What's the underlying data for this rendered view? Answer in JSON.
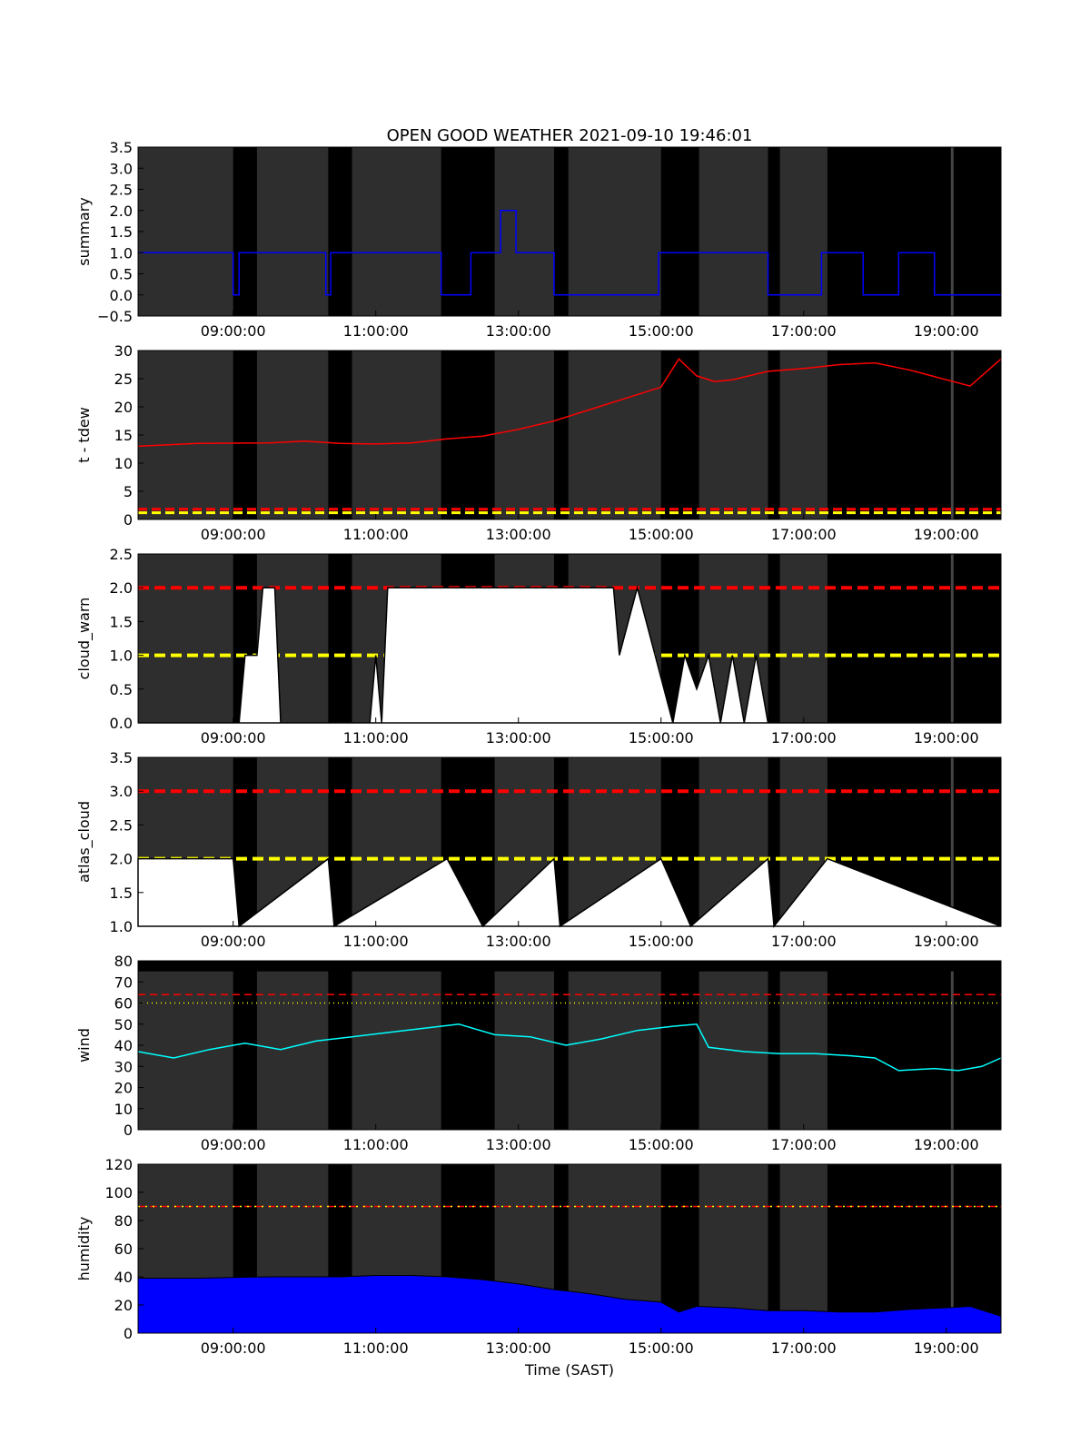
{
  "figure": {
    "title": "OPEN GOOD WEATHER 2021-09-10 19:46:01",
    "xlabel": "Time (SAST)",
    "x_range": [
      "07:40:00",
      "19:46:01"
    ],
    "x_ticks": [
      "09:00:00",
      "11:00:00",
      "13:00:00",
      "15:00:00",
      "17:00:00",
      "19:00:00"
    ],
    "colors": {
      "background": "#000000",
      "shade": "#2e2e2e",
      "red": "#ff0000",
      "yellow": "#ffff00",
      "white": "#ffffff",
      "blue": "#0000ff",
      "cyan": "#00ffff"
    }
  },
  "chart_data": [
    {
      "type": "line",
      "ylabel": "summary",
      "ylim": [
        -0.5,
        3.5
      ],
      "yticks": [
        "−0.5",
        "0.0",
        "0.5",
        "1.0",
        "1.5",
        "2.0",
        "2.5",
        "3.0",
        "3.5"
      ],
      "series": [
        {
          "color": "#0000ff",
          "x": [
            "07:40",
            "09:00",
            "09:00",
            "09:05",
            "09:05",
            "10:18",
            "10:18",
            "10:22",
            "10:22",
            "11:55",
            "11:55",
            "12:20",
            "12:20",
            "12:45",
            "12:45",
            "12:58",
            "12:58",
            "13:30",
            "13:30",
            "14:58",
            "14:58",
            "15:20",
            "15:20",
            "16:30",
            "16:30",
            "17:15",
            "17:15",
            "17:50",
            "17:50",
            "18:20",
            "18:20",
            "18:50",
            "18:50",
            "19:25",
            "19:25",
            "19:46"
          ],
          "y": [
            1,
            1,
            0,
            0,
            1,
            1,
            0,
            0,
            1,
            1,
            0,
            0,
            1,
            1,
            2,
            2,
            1,
            1,
            0,
            0,
            1,
            1,
            1,
            1,
            0,
            0,
            1,
            1,
            0,
            0,
            1,
            1,
            0,
            0,
            0,
            0
          ]
        }
      ]
    },
    {
      "type": "line",
      "ylabel": "t - tdew",
      "ylim": [
        0,
        30
      ],
      "yticks": [
        "0",
        "5",
        "10",
        "15",
        "20",
        "25",
        "30"
      ],
      "series": [
        {
          "color": "#ff0000",
          "x": [
            "07:40",
            "08:30",
            "09:30",
            "10:00",
            "10:30",
            "11:00",
            "11:30",
            "12:00",
            "12:30",
            "13:00",
            "13:30",
            "14:00",
            "14:30",
            "15:00",
            "15:15",
            "15:30",
            "15:45",
            "16:00",
            "16:30",
            "17:00",
            "17:30",
            "18:00",
            "18:30",
            "19:00",
            "19:20",
            "19:46"
          ],
          "y": [
            13,
            13.5,
            13.6,
            13.9,
            13.5,
            13.4,
            13.6,
            14.3,
            14.8,
            16,
            17.5,
            19.5,
            21.5,
            23.5,
            28.5,
            25.5,
            24.5,
            24.8,
            26.3,
            26.8,
            27.5,
            27.8,
            26.5,
            24.8,
            23.7,
            28.5
          ]
        },
        {
          "color": "#ff0000",
          "x": [
            "07:40",
            "19:46"
          ],
          "y": [
            1.8,
            1.8
          ]
        },
        {
          "color": "#ffff00",
          "x": [
            "07:40",
            "19:46"
          ],
          "y": [
            1.2,
            1.2
          ]
        }
      ]
    },
    {
      "type": "line",
      "ylabel": "cloud_warn",
      "ylim": [
        0,
        2.5
      ],
      "yticks": [
        "0.0",
        "0.5",
        "1.0",
        "1.5",
        "2.0",
        "2.5"
      ],
      "thresholds": [
        2.0,
        1.0
      ],
      "series": [
        {
          "color": "#ffffff",
          "x": [
            "07:40",
            "09:05",
            "09:10",
            "09:20",
            "09:25",
            "09:35",
            "09:40",
            "10:55",
            "11:00",
            "11:05",
            "11:10",
            "11:15",
            "12:00",
            "12:30",
            "13:00",
            "13:30",
            "14:00",
            "14:20",
            "14:25",
            "14:40",
            "14:55",
            "15:10",
            "15:20",
            "15:30",
            "15:40",
            "15:50",
            "16:00",
            "16:10",
            "16:20",
            "16:30",
            "16:40",
            "19:46"
          ],
          "y": [
            0,
            0,
            1,
            1,
            2,
            2,
            0,
            0,
            1,
            0,
            2,
            2,
            2,
            2,
            2,
            2,
            2,
            2,
            1,
            2,
            1,
            0,
            1,
            0.5,
            1,
            0,
            1,
            0,
            1,
            0,
            0,
            0
          ]
        }
      ]
    },
    {
      "type": "line",
      "ylabel": "atlas_cloud",
      "ylim": [
        1.0,
        3.5
      ],
      "yticks": [
        "1.0",
        "1.5",
        "2.0",
        "2.5",
        "3.0",
        "3.5"
      ],
      "thresholds": [
        3.0,
        2.0
      ],
      "series": [
        {
          "color": "#ffffff",
          "x": [
            "07:40",
            "09:00",
            "09:05",
            "10:20",
            "10:25",
            "12:00",
            "12:30",
            "13:30",
            "13:35",
            "15:00",
            "15:25",
            "16:30",
            "16:35",
            "17:20",
            "19:46"
          ],
          "y": [
            2,
            2,
            1,
            2,
            1,
            2,
            1,
            2,
            1,
            2,
            1,
            2,
            1,
            2,
            1
          ]
        }
      ]
    },
    {
      "type": "line",
      "ylabel": "wind",
      "ylim": [
        0,
        80
      ],
      "yticks": [
        "0",
        "10",
        "20",
        "30",
        "40",
        "50",
        "60",
        "70",
        "80"
      ],
      "thresholds": [
        64,
        60
      ],
      "series": [
        {
          "color": "#00ffff",
          "x": [
            "07:40",
            "08:10",
            "08:40",
            "09:10",
            "09:40",
            "10:10",
            "10:40",
            "11:10",
            "11:40",
            "12:10",
            "12:40",
            "13:10",
            "13:40",
            "14:10",
            "14:40",
            "15:10",
            "15:30",
            "15:40",
            "16:10",
            "16:40",
            "17:10",
            "17:40",
            "18:00",
            "18:20",
            "18:50",
            "19:10",
            "19:30",
            "19:46"
          ],
          "y": [
            37,
            34,
            38,
            41,
            38,
            42,
            44,
            46,
            48,
            50,
            45,
            44,
            40,
            43,
            47,
            49,
            50,
            39,
            37,
            36,
            36,
            35,
            34,
            28,
            29,
            28,
            30,
            34
          ]
        }
      ]
    },
    {
      "type": "area",
      "ylabel": "humidity",
      "ylim": [
        0,
        120
      ],
      "yticks": [
        "0",
        "20",
        "40",
        "60",
        "80",
        "100",
        "120"
      ],
      "thresholds": [
        90,
        90
      ],
      "series": [
        {
          "color": "#0000ff",
          "x": [
            "07:40",
            "08:30",
            "09:30",
            "10:30",
            "11:00",
            "11:30",
            "12:00",
            "12:30",
            "13:00",
            "13:30",
            "14:00",
            "14:30",
            "15:00",
            "15:15",
            "15:30",
            "16:00",
            "16:30",
            "17:00",
            "17:30",
            "18:00",
            "18:30",
            "19:00",
            "19:20",
            "19:46"
          ],
          "y": [
            39,
            39,
            40,
            40,
            41,
            41,
            40,
            38,
            35,
            31,
            28,
            24,
            22,
            15,
            19,
            18,
            16,
            16,
            15,
            15,
            17,
            18,
            19,
            12
          ]
        }
      ]
    }
  ]
}
